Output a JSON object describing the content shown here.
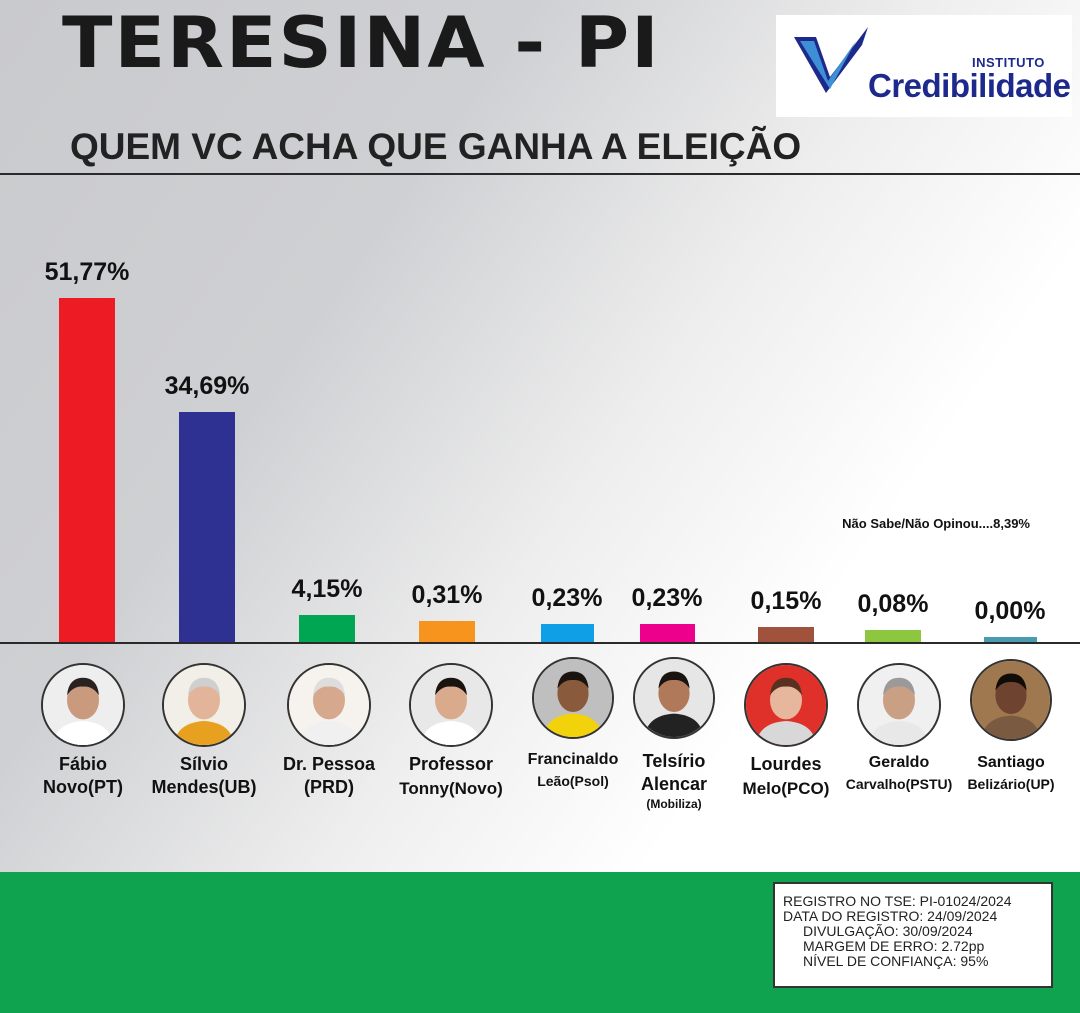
{
  "header": {
    "title": "TERESINA - PI",
    "question": "QUEM VC ACHA QUE GANHA A ELEIÇÃO",
    "logo": {
      "top_word": "INSTITUTO",
      "main_word": "Credibilidade",
      "brand_color": "#1d2a8c"
    }
  },
  "chart_data": {
    "type": "bar",
    "title": "QUEM VC ACHA QUE GANHA A ELEIÇÃO",
    "categories": [
      "Fábio Novo(PT)",
      "Sílvio Mendes(UB)",
      "Dr. Pessoa (PRD)",
      "Professor Tonny(Novo)",
      "Francinaldo Leão(Psol)",
      "Telsírio Alencar (Mobiliza)",
      "Lourdes Melo(PCO)",
      "Geraldo Carvalho(PSTU)",
      "Santiago Belizário(UP)"
    ],
    "values": [
      51.77,
      34.69,
      4.15,
      0.31,
      0.23,
      0.23,
      0.15,
      0.08,
      0.0
    ],
    "value_labels": [
      "51,77%",
      "34,69%",
      "4,15%",
      "0,31%",
      "0,23%",
      "0,23%",
      "0,15%",
      "0,08%",
      "0,00%"
    ],
    "colors": [
      "#ed1c24",
      "#2e3192",
      "#00a651",
      "#f7941d",
      "#0f9fe6",
      "#ec008c",
      "#a0523d",
      "#8dc63f",
      "#4a9ab0"
    ],
    "note": "Não Sabe/Não Opinou....8,39%",
    "ylim": [
      0,
      55
    ],
    "xlabel": "",
    "ylabel": "",
    "grid": false,
    "legend": "none"
  },
  "candidates": [
    {
      "line1": "Fábio",
      "line2": "Novo(PT)",
      "line3": ""
    },
    {
      "line1": "Sílvio",
      "line2": "Mendes(UB)",
      "line3": ""
    },
    {
      "line1": "Dr. Pessoa",
      "line2": "(PRD)",
      "line3": ""
    },
    {
      "line1": "Professor",
      "line2": "Tonny(Novo)",
      "line3": ""
    },
    {
      "line1": "Francinaldo",
      "line2": "Leão(Psol)",
      "line3": ""
    },
    {
      "line1": "Telsírio",
      "line2": "Alencar",
      "line3": "(Mobiliza)"
    },
    {
      "line1": "Lourdes",
      "line2": "Melo(PCO)",
      "line3": ""
    },
    {
      "line1": "Geraldo",
      "line2": "Carvalho(PSTU)",
      "line3": ""
    },
    {
      "line1": "Santiago",
      "line2": "Belizário(UP)",
      "line3": ""
    }
  ],
  "registration": {
    "line1": "REGISTRO NO TSE: PI-01024/2024",
    "line2": "DATA DO REGISTRO: 24/09/2024",
    "line3": "DIVULGAÇÃO: 30/09/2024",
    "line4": "MARGEM DE ERRO: 2.72pp",
    "line5": "NÍVEL DE CONFIANÇA: 95%"
  },
  "footer_color": "#0fa24f"
}
